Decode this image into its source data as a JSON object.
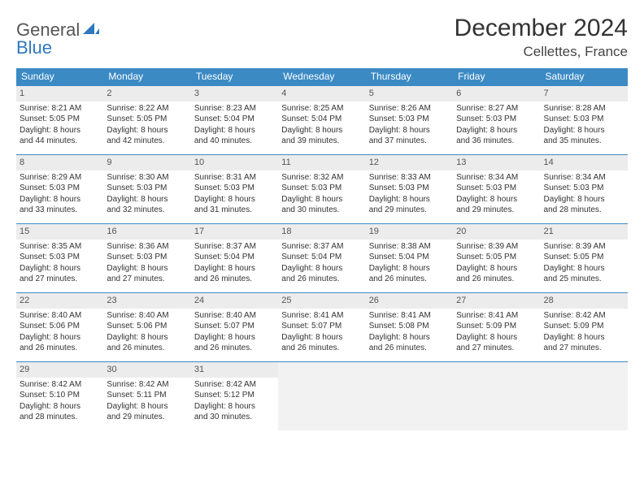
{
  "brand": {
    "word1": "General",
    "word2": "Blue"
  },
  "header": {
    "title": "December 2024",
    "location": "Cellettes, France"
  },
  "colors": {
    "header_bg": "#3b8ac4",
    "header_text": "#ffffff",
    "daynum_bg": "#ececec",
    "row_border": "#3b8ac4",
    "empty_bg": "#f2f2f2",
    "logo_accent": "#2f78bf"
  },
  "weekdays": [
    "Sunday",
    "Monday",
    "Tuesday",
    "Wednesday",
    "Thursday",
    "Friday",
    "Saturday"
  ],
  "weeks": [
    [
      {
        "n": "1",
        "sunrise": "Sunrise: 8:21 AM",
        "sunset": "Sunset: 5:05 PM",
        "day1": "Daylight: 8 hours",
        "day2": "and 44 minutes."
      },
      {
        "n": "2",
        "sunrise": "Sunrise: 8:22 AM",
        "sunset": "Sunset: 5:05 PM",
        "day1": "Daylight: 8 hours",
        "day2": "and 42 minutes."
      },
      {
        "n": "3",
        "sunrise": "Sunrise: 8:23 AM",
        "sunset": "Sunset: 5:04 PM",
        "day1": "Daylight: 8 hours",
        "day2": "and 40 minutes."
      },
      {
        "n": "4",
        "sunrise": "Sunrise: 8:25 AM",
        "sunset": "Sunset: 5:04 PM",
        "day1": "Daylight: 8 hours",
        "day2": "and 39 minutes."
      },
      {
        "n": "5",
        "sunrise": "Sunrise: 8:26 AM",
        "sunset": "Sunset: 5:03 PM",
        "day1": "Daylight: 8 hours",
        "day2": "and 37 minutes."
      },
      {
        "n": "6",
        "sunrise": "Sunrise: 8:27 AM",
        "sunset": "Sunset: 5:03 PM",
        "day1": "Daylight: 8 hours",
        "day2": "and 36 minutes."
      },
      {
        "n": "7",
        "sunrise": "Sunrise: 8:28 AM",
        "sunset": "Sunset: 5:03 PM",
        "day1": "Daylight: 8 hours",
        "day2": "and 35 minutes."
      }
    ],
    [
      {
        "n": "8",
        "sunrise": "Sunrise: 8:29 AM",
        "sunset": "Sunset: 5:03 PM",
        "day1": "Daylight: 8 hours",
        "day2": "and 33 minutes."
      },
      {
        "n": "9",
        "sunrise": "Sunrise: 8:30 AM",
        "sunset": "Sunset: 5:03 PM",
        "day1": "Daylight: 8 hours",
        "day2": "and 32 minutes."
      },
      {
        "n": "10",
        "sunrise": "Sunrise: 8:31 AM",
        "sunset": "Sunset: 5:03 PM",
        "day1": "Daylight: 8 hours",
        "day2": "and 31 minutes."
      },
      {
        "n": "11",
        "sunrise": "Sunrise: 8:32 AM",
        "sunset": "Sunset: 5:03 PM",
        "day1": "Daylight: 8 hours",
        "day2": "and 30 minutes."
      },
      {
        "n": "12",
        "sunrise": "Sunrise: 8:33 AM",
        "sunset": "Sunset: 5:03 PM",
        "day1": "Daylight: 8 hours",
        "day2": "and 29 minutes."
      },
      {
        "n": "13",
        "sunrise": "Sunrise: 8:34 AM",
        "sunset": "Sunset: 5:03 PM",
        "day1": "Daylight: 8 hours",
        "day2": "and 29 minutes."
      },
      {
        "n": "14",
        "sunrise": "Sunrise: 8:34 AM",
        "sunset": "Sunset: 5:03 PM",
        "day1": "Daylight: 8 hours",
        "day2": "and 28 minutes."
      }
    ],
    [
      {
        "n": "15",
        "sunrise": "Sunrise: 8:35 AM",
        "sunset": "Sunset: 5:03 PM",
        "day1": "Daylight: 8 hours",
        "day2": "and 27 minutes."
      },
      {
        "n": "16",
        "sunrise": "Sunrise: 8:36 AM",
        "sunset": "Sunset: 5:03 PM",
        "day1": "Daylight: 8 hours",
        "day2": "and 27 minutes."
      },
      {
        "n": "17",
        "sunrise": "Sunrise: 8:37 AM",
        "sunset": "Sunset: 5:04 PM",
        "day1": "Daylight: 8 hours",
        "day2": "and 26 minutes."
      },
      {
        "n": "18",
        "sunrise": "Sunrise: 8:37 AM",
        "sunset": "Sunset: 5:04 PM",
        "day1": "Daylight: 8 hours",
        "day2": "and 26 minutes."
      },
      {
        "n": "19",
        "sunrise": "Sunrise: 8:38 AM",
        "sunset": "Sunset: 5:04 PM",
        "day1": "Daylight: 8 hours",
        "day2": "and 26 minutes."
      },
      {
        "n": "20",
        "sunrise": "Sunrise: 8:39 AM",
        "sunset": "Sunset: 5:05 PM",
        "day1": "Daylight: 8 hours",
        "day2": "and 26 minutes."
      },
      {
        "n": "21",
        "sunrise": "Sunrise: 8:39 AM",
        "sunset": "Sunset: 5:05 PM",
        "day1": "Daylight: 8 hours",
        "day2": "and 25 minutes."
      }
    ],
    [
      {
        "n": "22",
        "sunrise": "Sunrise: 8:40 AM",
        "sunset": "Sunset: 5:06 PM",
        "day1": "Daylight: 8 hours",
        "day2": "and 26 minutes."
      },
      {
        "n": "23",
        "sunrise": "Sunrise: 8:40 AM",
        "sunset": "Sunset: 5:06 PM",
        "day1": "Daylight: 8 hours",
        "day2": "and 26 minutes."
      },
      {
        "n": "24",
        "sunrise": "Sunrise: 8:40 AM",
        "sunset": "Sunset: 5:07 PM",
        "day1": "Daylight: 8 hours",
        "day2": "and 26 minutes."
      },
      {
        "n": "25",
        "sunrise": "Sunrise: 8:41 AM",
        "sunset": "Sunset: 5:07 PM",
        "day1": "Daylight: 8 hours",
        "day2": "and 26 minutes."
      },
      {
        "n": "26",
        "sunrise": "Sunrise: 8:41 AM",
        "sunset": "Sunset: 5:08 PM",
        "day1": "Daylight: 8 hours",
        "day2": "and 26 minutes."
      },
      {
        "n": "27",
        "sunrise": "Sunrise: 8:41 AM",
        "sunset": "Sunset: 5:09 PM",
        "day1": "Daylight: 8 hours",
        "day2": "and 27 minutes."
      },
      {
        "n": "28",
        "sunrise": "Sunrise: 8:42 AM",
        "sunset": "Sunset: 5:09 PM",
        "day1": "Daylight: 8 hours",
        "day2": "and 27 minutes."
      }
    ],
    [
      {
        "n": "29",
        "sunrise": "Sunrise: 8:42 AM",
        "sunset": "Sunset: 5:10 PM",
        "day1": "Daylight: 8 hours",
        "day2": "and 28 minutes."
      },
      {
        "n": "30",
        "sunrise": "Sunrise: 8:42 AM",
        "sunset": "Sunset: 5:11 PM",
        "day1": "Daylight: 8 hours",
        "day2": "and 29 minutes."
      },
      {
        "n": "31",
        "sunrise": "Sunrise: 8:42 AM",
        "sunset": "Sunset: 5:12 PM",
        "day1": "Daylight: 8 hours",
        "day2": "and 30 minutes."
      },
      null,
      null,
      null,
      null
    ]
  ]
}
